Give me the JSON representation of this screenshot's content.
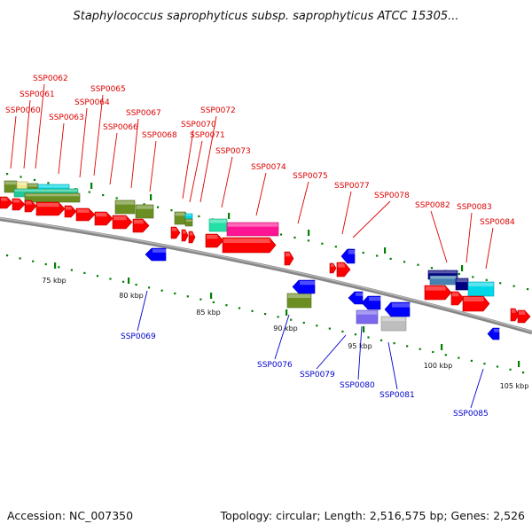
{
  "title": "Staphylococcus saprophyticus subsp. saprophyticus ATCC 15305...",
  "footer": {
    "accession": "Accession: NC_007350",
    "summary": "Topology: circular; Length: 2,516,575 bp; Genes: 2,526"
  },
  "colors": {
    "forward_gene": "#ff0000",
    "reverse_gene": "#0000ff",
    "forward_label": "#dd0000",
    "reverse_label": "#0000cc",
    "backbone": "#888888",
    "tick": "#008000"
  },
  "scale_labels": [
    "75 kbp",
    "80 kbp",
    "85 kbp",
    "90 kbp",
    "95 kbp",
    "100 kbp",
    "105 kbp"
  ],
  "forward_genes": [
    "SSP0060",
    "SSP0061",
    "SSP0062",
    "SSP0063",
    "SSP0064",
    "SSP0065",
    "SSP0066",
    "SSP0067",
    "SSP0068",
    "SSP0070",
    "SSP0071",
    "SSP0072",
    "SSP0073",
    "SSP0074",
    "SSP0075",
    "SSP0077",
    "SSP0078",
    "SSP0082",
    "SSP0083",
    "SSP0084"
  ],
  "reverse_genes": [
    "SSP0069",
    "SSP0076",
    "SSP0079",
    "SSP0080",
    "SSP0081",
    "SSP0085"
  ]
}
